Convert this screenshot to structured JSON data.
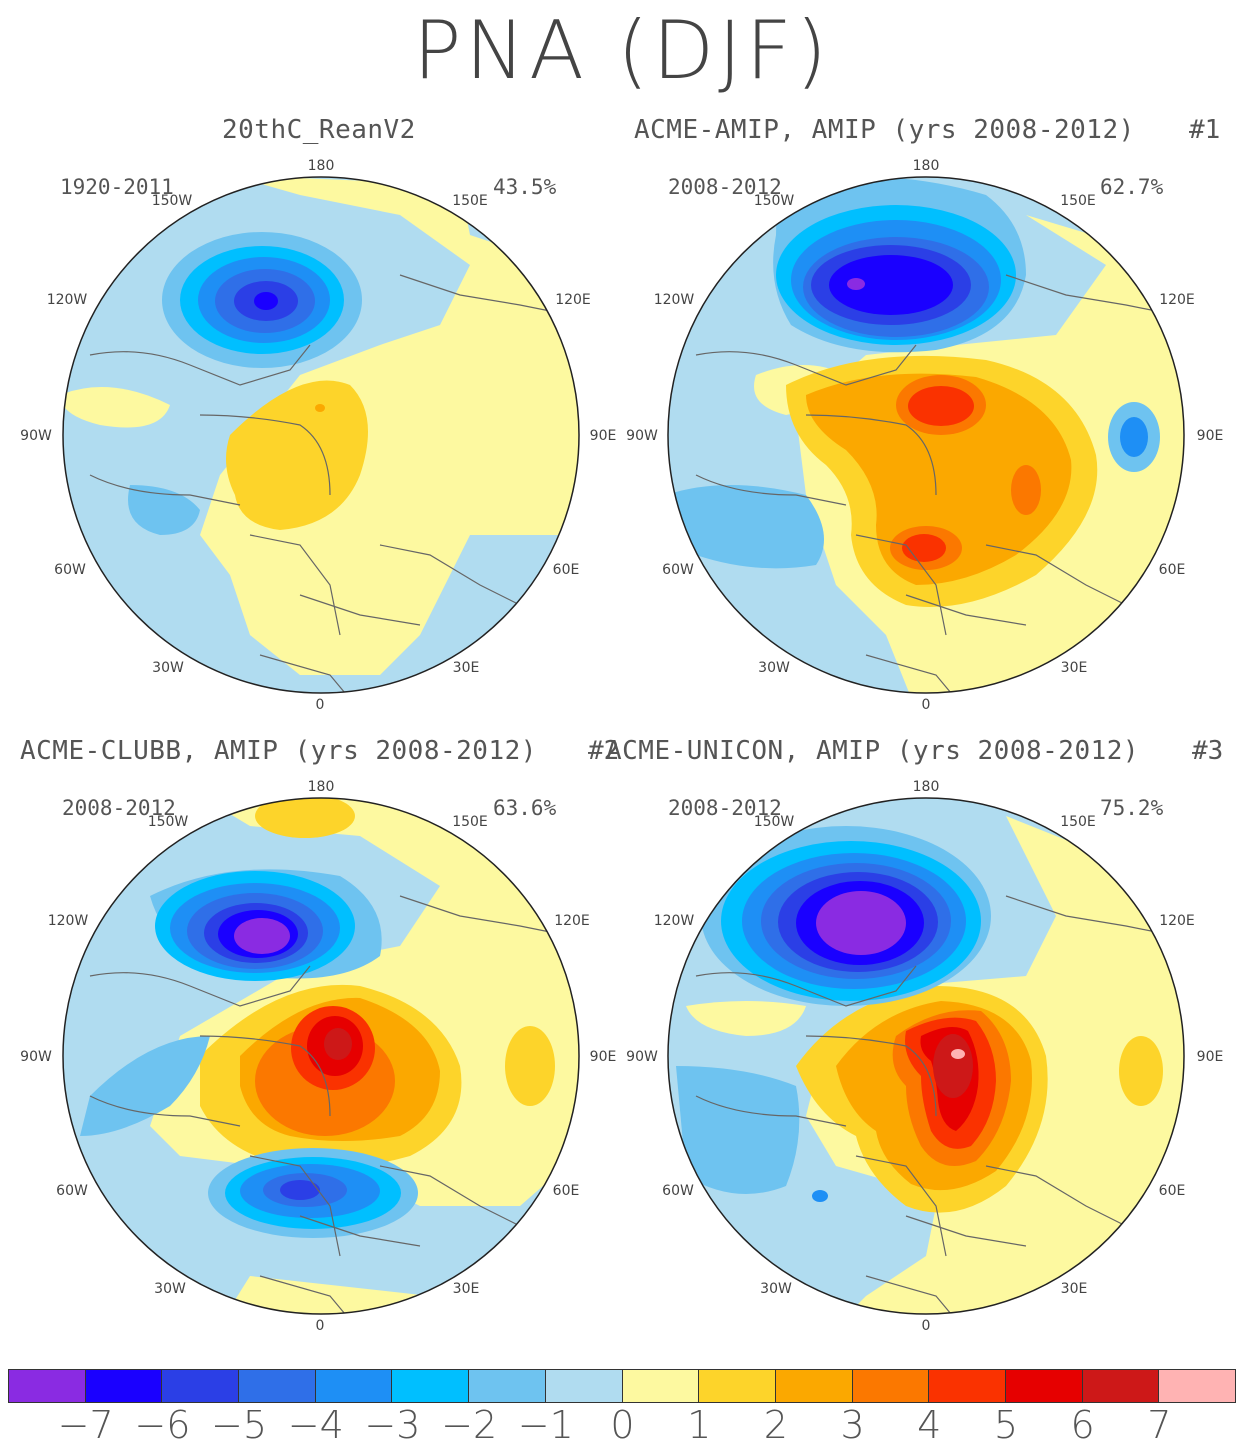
{
  "title": "PNA (DJF)",
  "panels": [
    {
      "title": "20thC_ReanV2",
      "number": "",
      "period": "1920-2011",
      "pct": "43.5%"
    },
    {
      "title": "ACME-AMIP, AMIP (yrs 2008-2012)",
      "number": "#1",
      "period": "2008-2012",
      "pct": "62.7%"
    },
    {
      "title": "ACME-CLUBB, AMIP (yrs 2008-2012)",
      "number": "#2",
      "period": "2008-2012",
      "pct": "63.6%"
    },
    {
      "title": "ACME-UNICON, AMIP (yrs 2008-2012)",
      "number": "#3",
      "period": "2008-2012",
      "pct": "75.2%"
    }
  ],
  "lon_labels": {
    "l180": "180",
    "l150w": "150W",
    "l150e": "150E",
    "l120w": "120W",
    "l120e": "120E",
    "l90w": "90W",
    "l90e": "90E",
    "l60w": "60W",
    "l60e": "60E",
    "l30w": "30W",
    "l30e": "30E",
    "l0": "0"
  },
  "colorbar": {
    "colors": [
      "#8a2be2",
      "#1a00ff",
      "#2b3fe6",
      "#2f6fe8",
      "#1e8ff5",
      "#00bfff",
      "#6ec3f0",
      "#b0dcf0",
      "#fdf9a0",
      "#fdd42a",
      "#fba800",
      "#fb7800",
      "#fa3200",
      "#e60000",
      "#cd1818",
      "#ffb3b3"
    ],
    "ticks": [
      "−7",
      "−6",
      "−5",
      "−4",
      "−3",
      "−2",
      "−1",
      "0",
      "1",
      "2",
      "3",
      "4",
      "5",
      "6",
      "7"
    ]
  }
}
